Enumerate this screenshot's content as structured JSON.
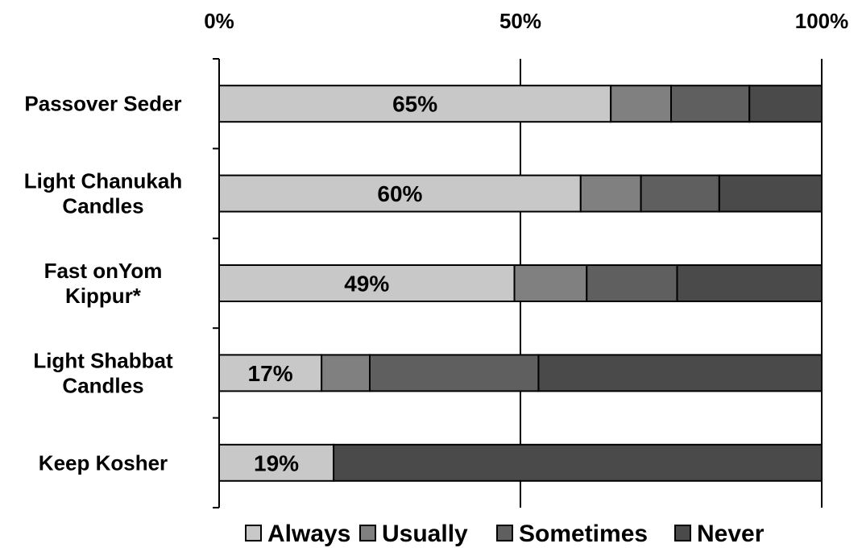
{
  "chart_data": {
    "type": "bar",
    "orientation": "horizontal",
    "stacked": true,
    "percent_stacked": true,
    "x_axis_position": "top",
    "x_ticks": [
      "0%",
      "50%",
      "100%"
    ],
    "xlim": [
      0,
      100
    ],
    "grid": "vertical at 50%",
    "legend_position": "bottom",
    "categories": [
      "Passover Seder",
      "Light Chanukah Candles",
      "Fast onYom Kippur*",
      "Light Shabbat Candles",
      "Keep Kosher"
    ],
    "category_lines": [
      [
        "Passover Seder"
      ],
      [
        "Light Chanukah",
        "Candles"
      ],
      [
        "Fast onYom",
        "Kippur*"
      ],
      [
        "Light Shabbat",
        "Candles"
      ],
      [
        "Keep Kosher"
      ]
    ],
    "series": [
      {
        "name": "Always",
        "color": "#c8c8c8",
        "values": [
          65,
          60,
          49,
          17,
          19
        ],
        "labels": [
          "65%",
          "60%",
          "49%",
          "17%",
          "19%"
        ]
      },
      {
        "name": "Usually",
        "color": "#808080",
        "values": [
          10,
          10,
          12,
          8,
          0
        ]
      },
      {
        "name": "Sometimes",
        "color": "#5f5f5f",
        "values": [
          13,
          13,
          15,
          28,
          0
        ]
      },
      {
        "name": "Never",
        "color": "#4a4a4a",
        "values": [
          12,
          17,
          24,
          47,
          81
        ]
      }
    ]
  }
}
